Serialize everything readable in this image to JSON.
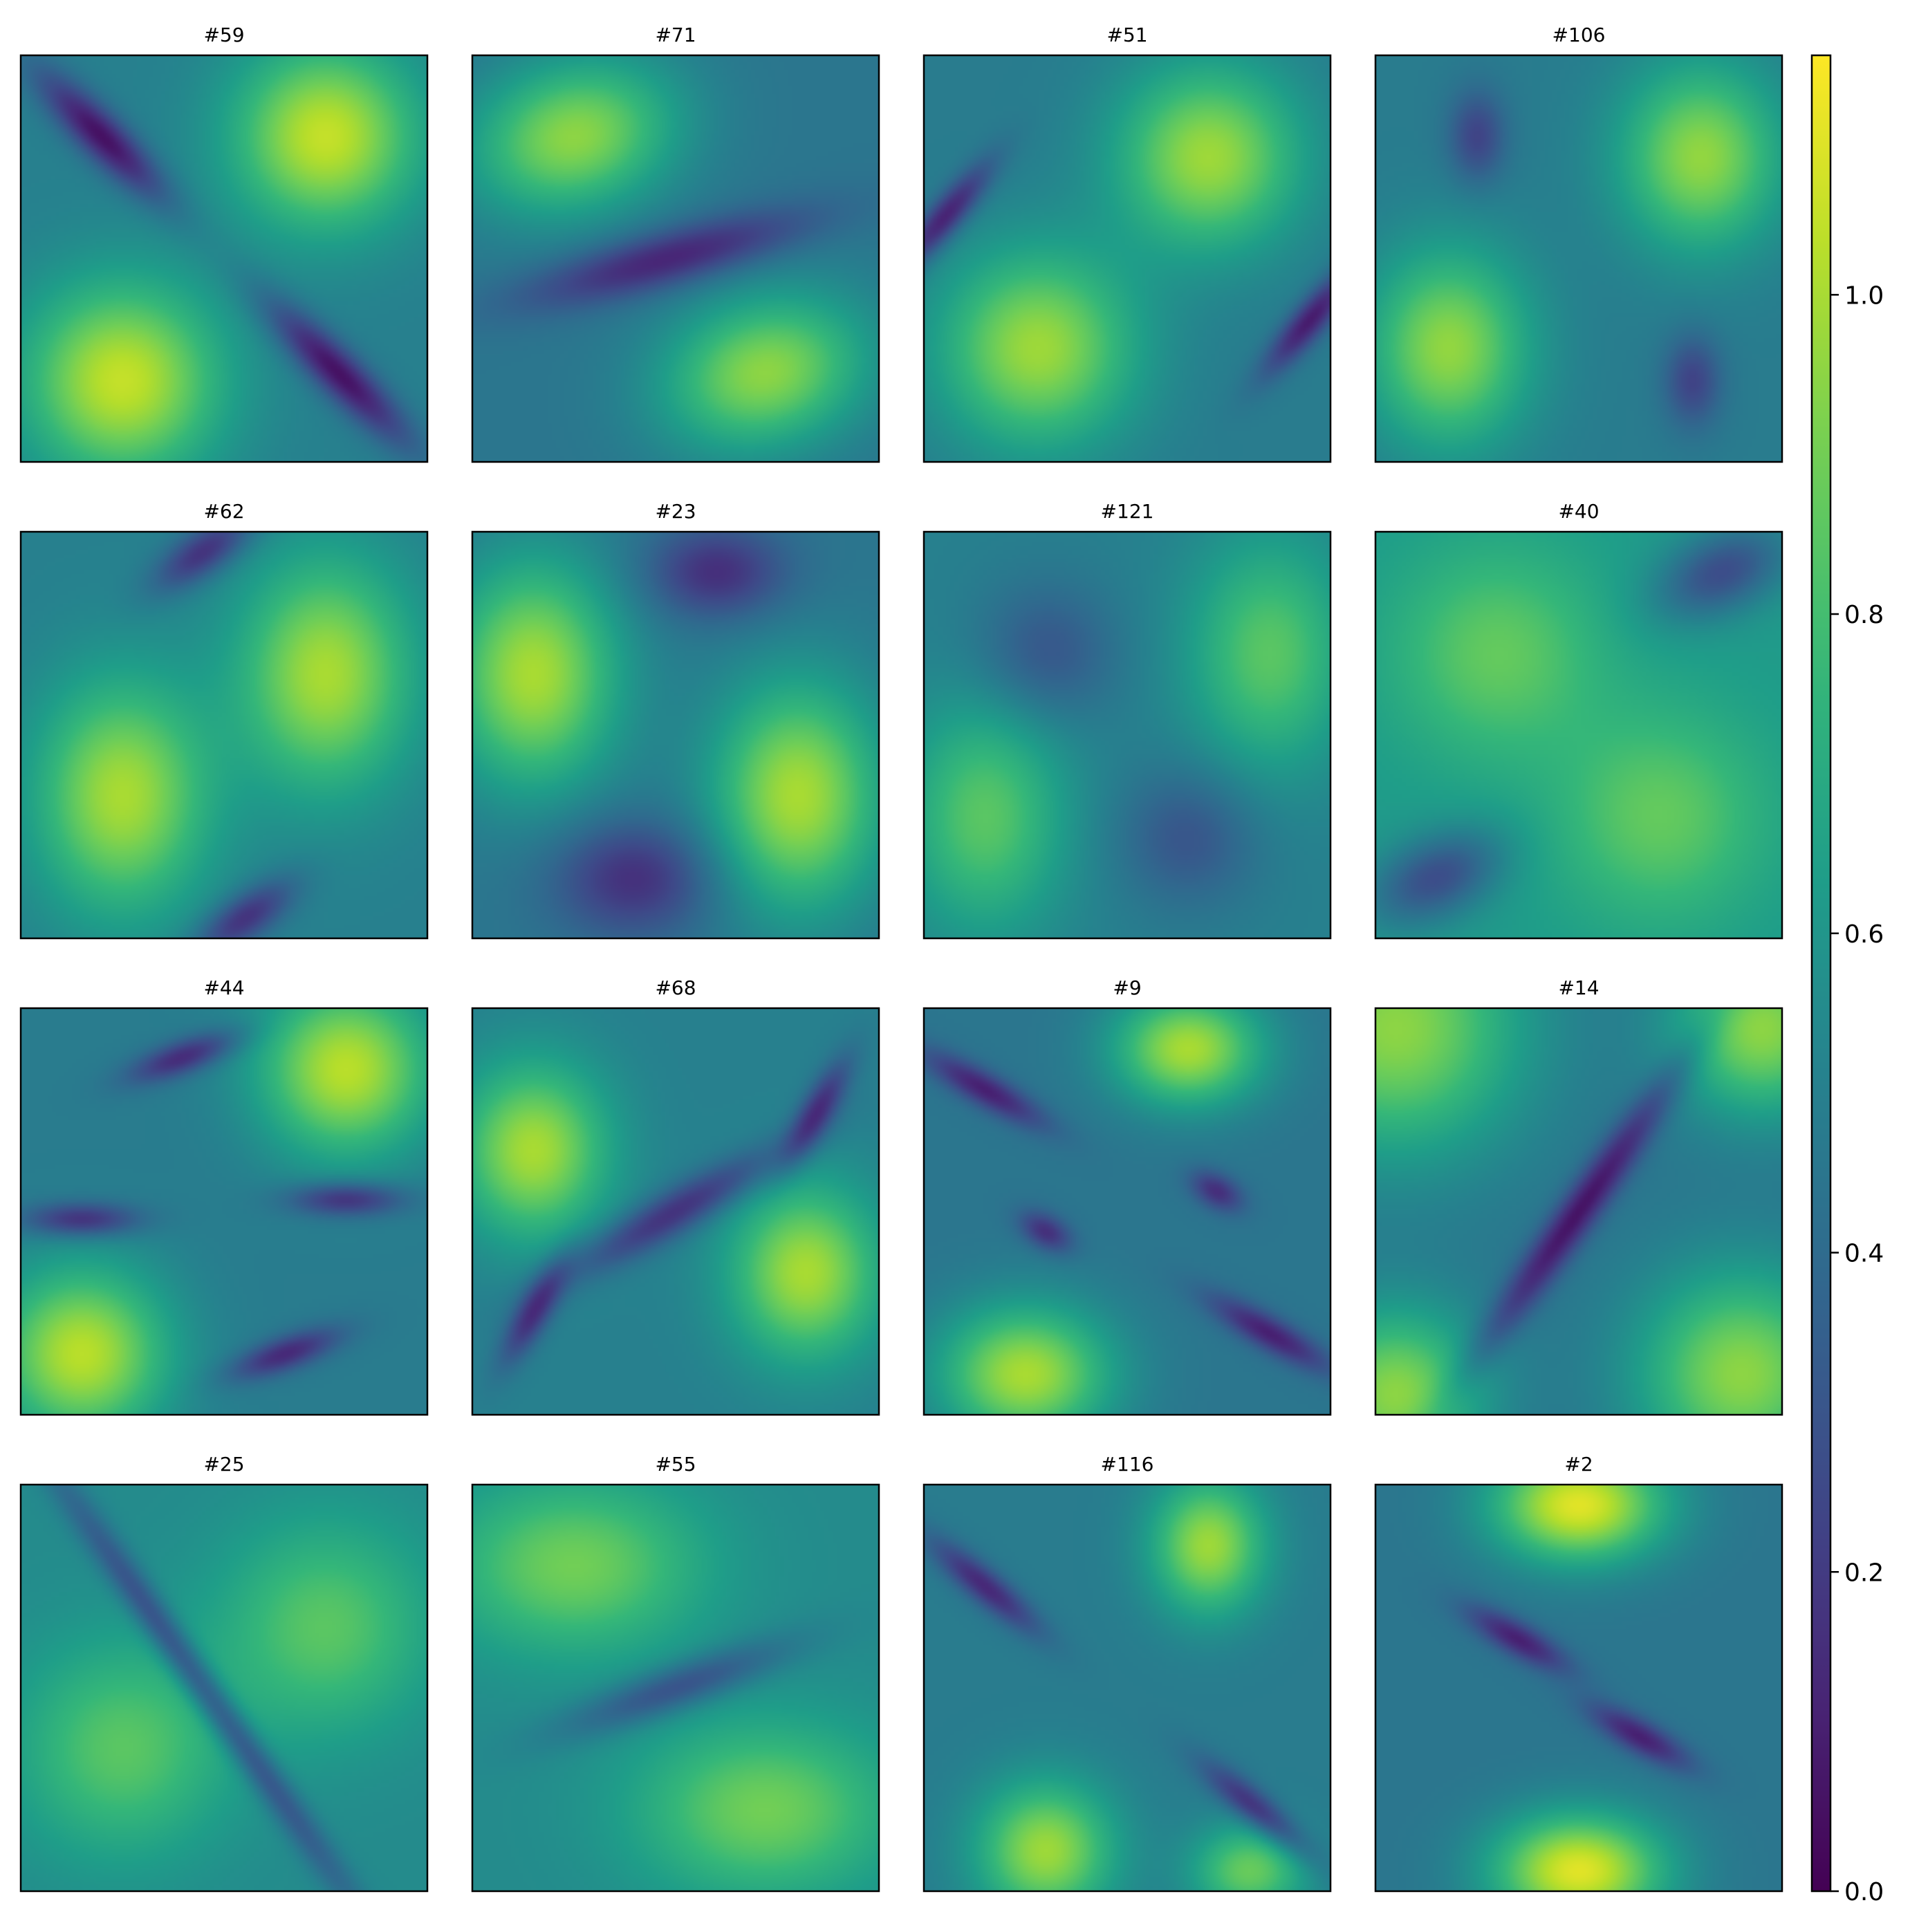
{
  "chart_data": {
    "type": "heatmap",
    "colormap": "viridis",
    "grid": false,
    "legend": "none",
    "layout": {
      "rows": 4,
      "cols": 4
    },
    "colorbar": {
      "range": [
        0.0,
        1.15
      ],
      "ticks": [
        0.0,
        0.2,
        0.4,
        0.6,
        0.8,
        1.0
      ],
      "tick_labels": [
        "0.0",
        "0.2",
        "0.4",
        "0.6",
        "0.8",
        "1.0"
      ]
    },
    "panels": [
      {
        "title": "#59",
        "base": 0.5,
        "features": [
          {
            "x": 0.75,
            "y": 0.2,
            "sx": 0.16,
            "sy": 0.16,
            "amp": 0.55
          },
          {
            "x": 0.25,
            "y": 0.8,
            "sx": 0.17,
            "sy": 0.17,
            "amp": 0.55
          },
          {
            "x": 0.2,
            "y": 0.2,
            "sx": 0.15,
            "sy": 0.04,
            "rot": 45,
            "amp": -0.45
          },
          {
            "x": 0.78,
            "y": 0.78,
            "sx": 0.17,
            "sy": 0.04,
            "rot": 45,
            "amp": -0.45
          }
        ]
      },
      {
        "title": "#71",
        "base": 0.45,
        "features": [
          {
            "x": 0.25,
            "y": 0.2,
            "sx": 0.18,
            "sy": 0.13,
            "rot": -15,
            "amp": 0.5
          },
          {
            "x": 0.72,
            "y": 0.78,
            "sx": 0.18,
            "sy": 0.13,
            "rot": -15,
            "amp": 0.5
          },
          {
            "x": 0.48,
            "y": 0.5,
            "sx": 0.25,
            "sy": 0.05,
            "rot": -15,
            "amp": -0.35
          }
        ]
      },
      {
        "title": "#51",
        "base": 0.48,
        "features": [
          {
            "x": 0.7,
            "y": 0.25,
            "sx": 0.16,
            "sy": 0.16,
            "amp": 0.5
          },
          {
            "x": 0.28,
            "y": 0.72,
            "sx": 0.17,
            "sy": 0.17,
            "amp": 0.5
          },
          {
            "x": 0.05,
            "y": 0.4,
            "sx": 0.12,
            "sy": 0.03,
            "rot": -50,
            "amp": -0.4
          },
          {
            "x": 0.95,
            "y": 0.65,
            "sx": 0.12,
            "sy": 0.03,
            "rot": -50,
            "amp": -0.4
          }
        ]
      },
      {
        "title": "#106",
        "base": 0.48,
        "features": [
          {
            "x": 0.8,
            "y": 0.25,
            "sx": 0.14,
            "sy": 0.16,
            "amp": 0.48
          },
          {
            "x": 0.18,
            "y": 0.72,
            "sx": 0.14,
            "sy": 0.17,
            "amp": 0.48
          },
          {
            "x": 0.25,
            "y": 0.2,
            "sx": 0.05,
            "sy": 0.08,
            "amp": -0.25
          },
          {
            "x": 0.78,
            "y": 0.8,
            "sx": 0.05,
            "sy": 0.08,
            "amp": -0.25
          }
        ]
      },
      {
        "title": "#62",
        "base": 0.5,
        "features": [
          {
            "x": 0.75,
            "y": 0.35,
            "sx": 0.15,
            "sy": 0.2,
            "amp": 0.5
          },
          {
            "x": 0.25,
            "y": 0.65,
            "sx": 0.15,
            "sy": 0.2,
            "amp": 0.5
          },
          {
            "x": 0.45,
            "y": 0.05,
            "sx": 0.1,
            "sy": 0.04,
            "rot": -35,
            "amp": -0.35
          },
          {
            "x": 0.55,
            "y": 0.95,
            "sx": 0.1,
            "sy": 0.04,
            "rot": -35,
            "amp": -0.35
          }
        ]
      },
      {
        "title": "#23",
        "base": 0.45,
        "features": [
          {
            "x": 0.15,
            "y": 0.35,
            "sx": 0.15,
            "sy": 0.2,
            "amp": 0.55
          },
          {
            "x": 0.8,
            "y": 0.65,
            "sx": 0.15,
            "sy": 0.2,
            "amp": 0.55
          },
          {
            "x": 0.6,
            "y": 0.1,
            "sx": 0.12,
            "sy": 0.08,
            "amp": -0.3
          },
          {
            "x": 0.4,
            "y": 0.85,
            "sx": 0.14,
            "sy": 0.1,
            "amp": -0.3
          }
        ]
      },
      {
        "title": "#121",
        "base": 0.5,
        "features": [
          {
            "x": 0.85,
            "y": 0.3,
            "sx": 0.14,
            "sy": 0.2,
            "amp": 0.35
          },
          {
            "x": 0.15,
            "y": 0.7,
            "sx": 0.14,
            "sy": 0.2,
            "amp": 0.35
          },
          {
            "x": 0.3,
            "y": 0.3,
            "sx": 0.12,
            "sy": 0.12,
            "amp": -0.2
          },
          {
            "x": 0.65,
            "y": 0.75,
            "sx": 0.12,
            "sy": 0.12,
            "amp": -0.2
          }
        ]
      },
      {
        "title": "#40",
        "base": 0.62,
        "features": [
          {
            "x": 0.3,
            "y": 0.3,
            "sx": 0.18,
            "sy": 0.18,
            "amp": 0.25
          },
          {
            "x": 0.7,
            "y": 0.7,
            "sx": 0.18,
            "sy": 0.18,
            "amp": 0.25
          },
          {
            "x": 0.85,
            "y": 0.1,
            "sx": 0.12,
            "sy": 0.07,
            "rot": -25,
            "amp": -0.35
          },
          {
            "x": 0.15,
            "y": 0.85,
            "sx": 0.12,
            "sy": 0.07,
            "rot": -25,
            "amp": -0.35
          }
        ]
      },
      {
        "title": "#44",
        "base": 0.48,
        "features": [
          {
            "x": 0.8,
            "y": 0.15,
            "sx": 0.15,
            "sy": 0.15,
            "amp": 0.55
          },
          {
            "x": 0.15,
            "y": 0.85,
            "sx": 0.15,
            "sy": 0.15,
            "amp": 0.55
          },
          {
            "x": 0.4,
            "y": 0.12,
            "sx": 0.1,
            "sy": 0.03,
            "rot": -20,
            "amp": -0.35
          },
          {
            "x": 0.15,
            "y": 0.52,
            "sx": 0.1,
            "sy": 0.03,
            "amp": -0.35
          },
          {
            "x": 0.8,
            "y": 0.47,
            "sx": 0.1,
            "sy": 0.03,
            "amp": -0.35
          },
          {
            "x": 0.65,
            "y": 0.85,
            "sx": 0.1,
            "sy": 0.03,
            "rot": -20,
            "amp": -0.35
          }
        ]
      },
      {
        "title": "#68",
        "base": 0.5,
        "features": [
          {
            "x": 0.15,
            "y": 0.35,
            "sx": 0.13,
            "sy": 0.15,
            "amp": 0.5
          },
          {
            "x": 0.82,
            "y": 0.65,
            "sx": 0.13,
            "sy": 0.15,
            "amp": 0.5
          },
          {
            "x": 0.5,
            "y": 0.5,
            "sx": 0.22,
            "sy": 0.04,
            "rot": -30,
            "amp": -0.35
          },
          {
            "x": 0.85,
            "y": 0.25,
            "sx": 0.1,
            "sy": 0.03,
            "rot": -60,
            "amp": -0.35
          },
          {
            "x": 0.15,
            "y": 0.75,
            "sx": 0.1,
            "sy": 0.03,
            "rot": -60,
            "amp": -0.35
          }
        ]
      },
      {
        "title": "#9",
        "base": 0.45,
        "features": [
          {
            "x": 0.65,
            "y": 0.1,
            "sx": 0.13,
            "sy": 0.1,
            "amp": 0.55
          },
          {
            "x": 0.25,
            "y": 0.9,
            "sx": 0.15,
            "sy": 0.12,
            "amp": 0.55
          },
          {
            "x": 0.15,
            "y": 0.2,
            "sx": 0.12,
            "sy": 0.03,
            "rot": 30,
            "amp": -0.35
          },
          {
            "x": 0.3,
            "y": 0.55,
            "sx": 0.05,
            "sy": 0.03,
            "rot": 30,
            "amp": -0.3
          },
          {
            "x": 0.72,
            "y": 0.45,
            "sx": 0.05,
            "sy": 0.03,
            "rot": 30,
            "amp": -0.3
          },
          {
            "x": 0.85,
            "y": 0.8,
            "sx": 0.12,
            "sy": 0.03,
            "rot": 30,
            "amp": -0.35
          }
        ]
      },
      {
        "title": "#14",
        "base": 0.45,
        "features": [
          {
            "x": 0.05,
            "y": 0.05,
            "sx": 0.22,
            "sy": 0.22,
            "amp": 0.5
          },
          {
            "x": 0.95,
            "y": 0.05,
            "sx": 0.15,
            "sy": 0.15,
            "amp": 0.5
          },
          {
            "x": 0.05,
            "y": 0.95,
            "sx": 0.15,
            "sy": 0.15,
            "amp": 0.5
          },
          {
            "x": 0.9,
            "y": 0.9,
            "sx": 0.18,
            "sy": 0.18,
            "amp": 0.5
          },
          {
            "x": 0.5,
            "y": 0.5,
            "sx": 0.3,
            "sy": 0.035,
            "rot": -55,
            "amp": -0.4
          }
        ]
      },
      {
        "title": "#25",
        "base": 0.55,
        "features": [
          {
            "x": 0.75,
            "y": 0.35,
            "sx": 0.18,
            "sy": 0.18,
            "amp": 0.3
          },
          {
            "x": 0.25,
            "y": 0.65,
            "sx": 0.18,
            "sy": 0.18,
            "amp": 0.3
          },
          {
            "x": 0.45,
            "y": 0.5,
            "sx": 0.45,
            "sy": 0.03,
            "rot": 55,
            "amp": -0.35
          }
        ]
      },
      {
        "title": "#55",
        "base": 0.55,
        "features": [
          {
            "x": 0.25,
            "y": 0.2,
            "sx": 0.22,
            "sy": 0.15,
            "amp": 0.35
          },
          {
            "x": 0.72,
            "y": 0.8,
            "sx": 0.22,
            "sy": 0.15,
            "amp": 0.35
          },
          {
            "x": 0.5,
            "y": 0.5,
            "sx": 0.2,
            "sy": 0.04,
            "rot": -20,
            "amp": -0.3
          }
        ]
      },
      {
        "title": "#116",
        "base": 0.48,
        "features": [
          {
            "x": 0.7,
            "y": 0.15,
            "sx": 0.1,
            "sy": 0.12,
            "amp": 0.5
          },
          {
            "x": 0.3,
            "y": 0.9,
            "sx": 0.12,
            "sy": 0.12,
            "amp": 0.5
          },
          {
            "x": 0.8,
            "y": 0.95,
            "sx": 0.1,
            "sy": 0.08,
            "amp": 0.4
          },
          {
            "x": 0.15,
            "y": 0.25,
            "sx": 0.12,
            "sy": 0.03,
            "rot": 40,
            "amp": -0.35
          },
          {
            "x": 0.82,
            "y": 0.8,
            "sx": 0.12,
            "sy": 0.03,
            "rot": 40,
            "amp": -0.35
          }
        ]
      },
      {
        "title": "#2",
        "base": 0.45,
        "features": [
          {
            "x": 0.5,
            "y": 0.05,
            "sx": 0.15,
            "sy": 0.1,
            "amp": 0.65
          },
          {
            "x": 0.5,
            "y": 0.95,
            "sx": 0.15,
            "sy": 0.1,
            "amp": 0.65
          },
          {
            "x": 0.35,
            "y": 0.38,
            "sx": 0.1,
            "sy": 0.03,
            "rot": 30,
            "amp": -0.35
          },
          {
            "x": 0.65,
            "y": 0.62,
            "sx": 0.1,
            "sy": 0.03,
            "rot": 30,
            "amp": -0.35
          }
        ]
      }
    ]
  }
}
